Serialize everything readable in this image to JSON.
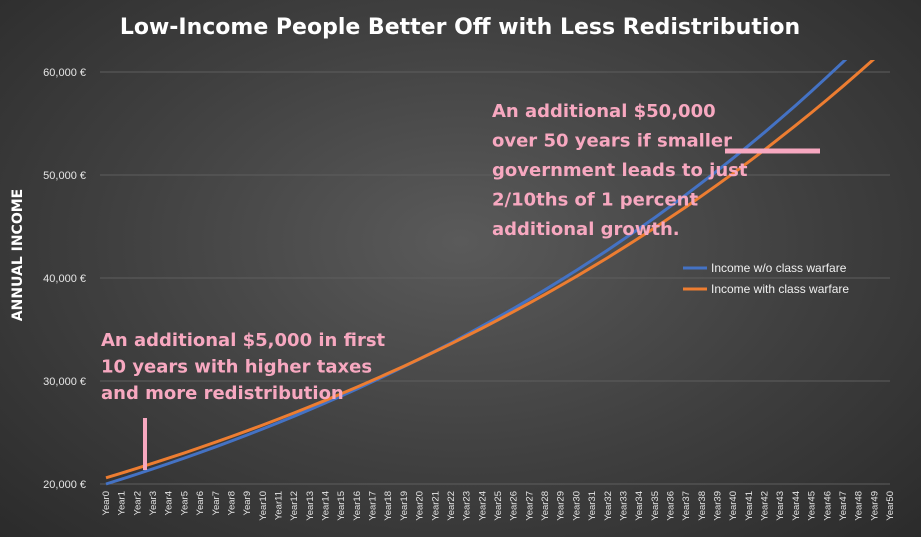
{
  "chart_data": {
    "type": "line",
    "title": "Low-Income People Better Off with Less Redistribution",
    "ylabel": "ANNUAL INCOME",
    "xlabel": "",
    "ylim": [
      20000,
      60000
    ],
    "yticks": [
      {
        "value": 20000,
        "label": "20,000 €"
      },
      {
        "value": 30000,
        "label": "30,000 €"
      },
      {
        "value": 40000,
        "label": "40,000 €"
      },
      {
        "value": 50000,
        "label": "50,000 €"
      },
      {
        "value": 60000,
        "label": "60,000 €"
      }
    ],
    "grid": true,
    "legend_position": "right",
    "x": [
      "Year0",
      "Year1",
      "Year2",
      "Year3",
      "Year4",
      "Year5",
      "Year6",
      "Year7",
      "Year8",
      "Year9",
      "Year10",
      "Year11",
      "Year12",
      "Year13",
      "Year14",
      "Year15",
      "Year16",
      "Year17",
      "Year18",
      "Year19",
      "Year20",
      "Year21",
      "Year22",
      "Year23",
      "Year24",
      "Year25",
      "Year26",
      "Year27",
      "Year28",
      "Year29",
      "Year30",
      "Year31",
      "Year32",
      "Year33",
      "Year34",
      "Year35",
      "Year36",
      "Year37",
      "Year38",
      "Year39",
      "Year40",
      "Year41",
      "Year42",
      "Year43",
      "Year44",
      "Year45",
      "Year46",
      "Year47",
      "Year48",
      "Year49",
      "Year50"
    ],
    "series": [
      {
        "name": "Income w/o class warfare",
        "color": "#4472c4",
        "values": [
          20000,
          20479,
          20970,
          21474,
          21989,
          22517,
          23057,
          23611,
          24177,
          24757,
          25352,
          25960,
          26583,
          27221,
          27874,
          28543,
          29228,
          29930,
          30648,
          31384,
          32137,
          32908,
          33698,
          34507,
          35335,
          36183,
          37051,
          37941,
          38851,
          39784,
          40739,
          41716,
          42717,
          43743,
          44792,
          45867,
          46968,
          48096,
          49250,
          50432,
          51642,
          52881,
          54150,
          55450,
          56781,
          58143,
          59539,
          60968,
          62431,
          63930,
          65464
        ]
      },
      {
        "name": "Income with class warfare",
        "color": "#ed7d31",
        "values": [
          20600,
          21063,
          21537,
          22022,
          22517,
          23024,
          23542,
          24072,
          24613,
          25167,
          25733,
          26312,
          26904,
          27510,
          28129,
          28762,
          29409,
          30071,
          30747,
          31439,
          32147,
          32870,
          33610,
          34366,
          35139,
          35930,
          36738,
          37565,
          38410,
          39274,
          40158,
          41061,
          41985,
          42930,
          43896,
          44884,
          45894,
          46926,
          47982,
          49062,
          50166,
          51294,
          52449,
          53629,
          54835,
          56069,
          57331,
          58621,
          59940,
          61288,
          62667
        ]
      }
    ],
    "annotations": [
      {
        "lines": [
          "An additional $50,000",
          "over 50 years if smaller",
          "government leads to just",
          "2/10ths of 1 percent",
          "additional growth."
        ],
        "color": "#f7a8c0",
        "marker_x": "Year45"
      },
      {
        "lines": [
          "An additional $5,000 in first",
          "10 years with higher taxes",
          "and more redistribution"
        ],
        "color": "#f7a8c0",
        "marker_x": "Year3"
      }
    ]
  }
}
